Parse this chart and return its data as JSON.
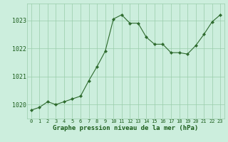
{
  "x": [
    0,
    1,
    2,
    3,
    4,
    5,
    6,
    7,
    8,
    9,
    10,
    11,
    12,
    13,
    14,
    15,
    16,
    17,
    18,
    19,
    20,
    21,
    22,
    23
  ],
  "y": [
    1019.8,
    1019.9,
    1020.1,
    1020.0,
    1020.1,
    1020.2,
    1020.3,
    1020.85,
    1021.35,
    1021.9,
    1023.05,
    1023.2,
    1022.9,
    1022.9,
    1022.4,
    1022.15,
    1022.15,
    1021.85,
    1021.85,
    1021.8,
    1022.1,
    1022.5,
    1022.95,
    1023.2
  ],
  "line_color": "#2d6a2d",
  "marker_color": "#2d6a2d",
  "bg_color": "#cceedd",
  "grid_color": "#99ccaa",
  "xlabel": "Graphe pression niveau de la mer (hPa)",
  "xlabel_color": "#1a5c1a",
  "tick_label_color": "#1a5c1a",
  "ylim": [
    1019.5,
    1023.6
  ],
  "xlim": [
    -0.5,
    23.5
  ],
  "yticks": [
    1020,
    1021,
    1022,
    1023
  ],
  "xticks": [
    0,
    1,
    2,
    3,
    4,
    5,
    6,
    7,
    8,
    9,
    10,
    11,
    12,
    13,
    14,
    15,
    16,
    17,
    18,
    19,
    20,
    21,
    22,
    23
  ],
  "xtick_labels": [
    "0",
    "1",
    "2",
    "3",
    "4",
    "5",
    "6",
    "7",
    "8",
    "9",
    "10",
    "11",
    "12",
    "13",
    "14",
    "15",
    "16",
    "17",
    "18",
    "19",
    "20",
    "21",
    "22",
    "23"
  ]
}
